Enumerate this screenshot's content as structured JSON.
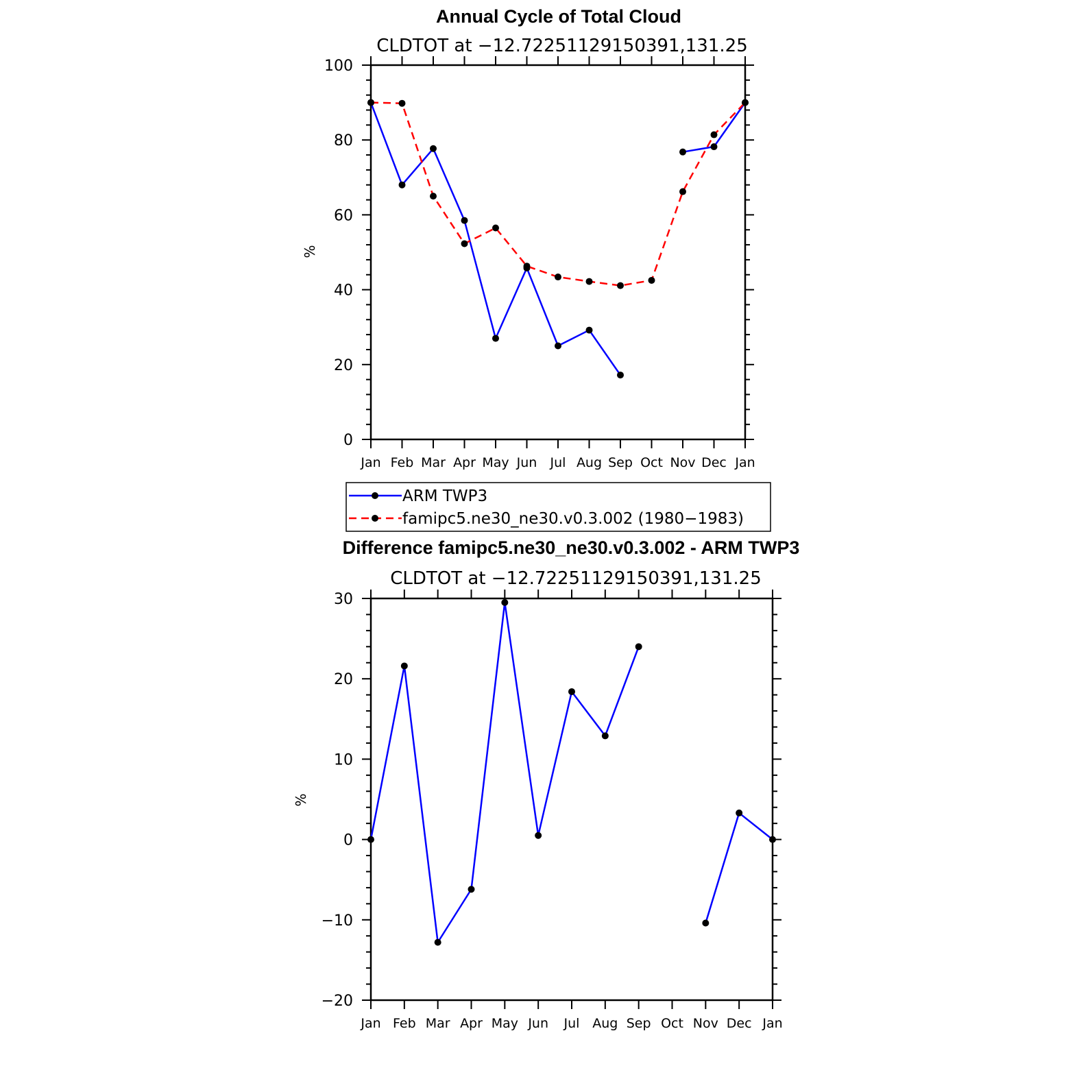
{
  "chart_data": [
    {
      "type": "line",
      "title": "Annual Cycle of Total Cloud",
      "subtitle": "CLDTOT at −12.72251129150391,131.25",
      "xlabel": "",
      "ylabel": "%",
      "categories": [
        "Jan",
        "Feb",
        "Mar",
        "Apr",
        "May",
        "Jun",
        "Jul",
        "Aug",
        "Sep",
        "Oct",
        "Nov",
        "Dec",
        "Jan"
      ],
      "ylim": [
        0,
        100
      ],
      "yticks": [
        0,
        20,
        40,
        60,
        80,
        100
      ],
      "ytick_labels": [
        "0",
        "20",
        "40",
        "60",
        "80",
        "100"
      ],
      "series": [
        {
          "name": "ARM TWP3",
          "color": "#0000ff",
          "dash": "solid",
          "values": [
            90,
            68,
            77.7,
            58.5,
            27,
            45.8,
            25,
            29.2,
            17.2,
            null,
            76.8,
            78.2,
            90
          ]
        },
        {
          "name": "famipc5.ne30_ne30.v0.3.002 (1980−1983)",
          "color": "#ff0000",
          "dash": "dashed",
          "values": [
            90,
            89.8,
            65,
            52.3,
            56.5,
            46.3,
            43.4,
            42.2,
            41.1,
            42.5,
            66.2,
            81.4,
            90
          ]
        }
      ],
      "legend": {
        "placement": "below",
        "entries": [
          "ARM TWP3",
          "famipc5.ne30_ne30.v0.3.002 (1980−1983)"
        ]
      }
    },
    {
      "type": "line",
      "title": "Difference famipc5.ne30_ne30.v0.3.002 - ARM TWP3",
      "subtitle": "CLDTOT at −12.72251129150391,131.25",
      "xlabel": "",
      "ylabel": "%",
      "categories": [
        "Jan",
        "Feb",
        "Mar",
        "Apr",
        "May",
        "Jun",
        "Jul",
        "Aug",
        "Sep",
        "Oct",
        "Nov",
        "Dec",
        "Jan"
      ],
      "ylim": [
        -20,
        30
      ],
      "yticks": [
        -20,
        -10,
        0,
        10,
        20,
        30
      ],
      "ytick_labels": [
        "−20",
        "−10",
        "0",
        "10",
        "20",
        "30"
      ],
      "series": [
        {
          "name": "Difference",
          "color": "#0000ff",
          "dash": "solid",
          "values": [
            0,
            21.6,
            -12.8,
            -6.2,
            29.5,
            0.5,
            18.4,
            12.9,
            24,
            null,
            -10.4,
            3.3,
            0
          ]
        }
      ]
    }
  ]
}
